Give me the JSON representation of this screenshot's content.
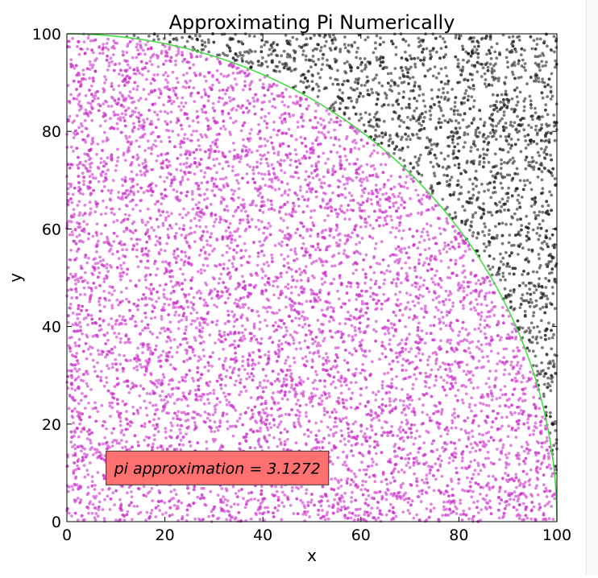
{
  "chart_data": {
    "type": "scatter",
    "title": "Approximating Pi Numerically",
    "xlabel": "x",
    "ylabel": "y",
    "xlim": [
      0,
      100
    ],
    "ylim": [
      0,
      100
    ],
    "xticks": [
      "0",
      "20",
      "40",
      "60",
      "80",
      "100"
    ],
    "yticks": [
      "0",
      "20",
      "40",
      "60",
      "80",
      "100"
    ],
    "grid": false,
    "series": [
      {
        "color": "#cc33cc",
        "region": "inside circle radius 100"
      },
      {
        "color": "#222222",
        "region": "outside circle radius 100"
      }
    ],
    "curve": {
      "type": "quarter-circle",
      "radius": 100,
      "color": "#44dd44"
    },
    "annotation": {
      "text": "pi approximation = 3.1272",
      "x": 8,
      "y": 11,
      "box_color": "#ff7070"
    },
    "points_estimated": 10000
  }
}
